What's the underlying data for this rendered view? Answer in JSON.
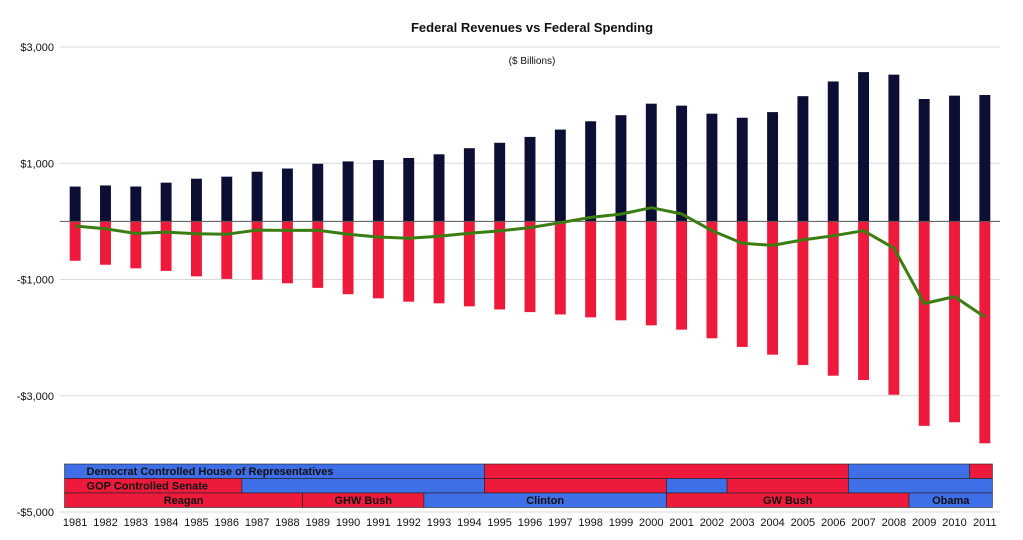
{
  "chart_data": {
    "type": "bar",
    "title": "Federal Revenues vs Federal Spending",
    "subtitle": "($ Billions)",
    "xlabel": "",
    "ylabel": "",
    "ylim": [
      -5000,
      3000
    ],
    "yticks": [
      {
        "value": 3000,
        "label": "$3,000"
      },
      {
        "value": 1000,
        "label": "$1,000"
      },
      {
        "value": -1000,
        "label": "-$1,000"
      },
      {
        "value": -3000,
        "label": "-$3,000"
      },
      {
        "value": -5000,
        "label": "-$5,000"
      }
    ],
    "grid": true,
    "legend": "none",
    "categories": [
      "1981",
      "1982",
      "1983",
      "1984",
      "1985",
      "1986",
      "1987",
      "1988",
      "1989",
      "1990",
      "1991",
      "1992",
      "1993",
      "1994",
      "1995",
      "1996",
      "1997",
      "1998",
      "1999",
      "2000",
      "2001",
      "2002",
      "2003",
      "2004",
      "2005",
      "2006",
      "2007",
      "2008",
      "2009",
      "2010",
      "2011"
    ],
    "series": [
      {
        "key": "revenues",
        "type": "bar",
        "color": "#0d0e33",
        "values": [
          599,
          618,
          600,
          666,
          734,
          769,
          854,
          909,
          991,
          1032,
          1055,
          1091,
          1154,
          1259,
          1352,
          1453,
          1579,
          1722,
          1827,
          2025,
          1991,
          1853,
          1783,
          1880,
          2154,
          2407,
          2568,
          2524,
          2105,
          2163,
          2174
        ]
      },
      {
        "key": "spending",
        "type": "bar",
        "color": "#ee1a3c",
        "values": [
          -678,
          -746,
          -808,
          -852,
          -946,
          -990,
          -1004,
          -1065,
          -1144,
          -1253,
          -1324,
          -1382,
          -1410,
          -1462,
          -1516,
          -1561,
          -1601,
          -1652,
          -1702,
          -1789,
          -1863,
          -2011,
          -2160,
          -2293,
          -2472,
          -2655,
          -2729,
          -2983,
          -3518,
          -3456,
          -3818
        ]
      },
      {
        "key": "deficit",
        "type": "line",
        "color": "#3a7d12",
        "values": [
          -79,
          -128,
          -208,
          -185,
          -212,
          -221,
          -150,
          -155,
          -153,
          -221,
          -269,
          -290,
          -255,
          -203,
          -164,
          -107,
          -22,
          69,
          126,
          236,
          128,
          -158,
          -377,
          -413,
          -318,
          -248,
          -161,
          -459,
          -1413,
          -1294,
          -1645
        ]
      }
    ],
    "bands": [
      {
        "key": "house",
        "segments": [
          {
            "from": "1981",
            "to": "1995",
            "color": "#3f6fe6",
            "label": "Democrat Controlled House of Representatives"
          },
          {
            "from": "1995",
            "to": "2007",
            "color": "#ee1a3c",
            "label": ""
          },
          {
            "from": "2007",
            "to": "2011",
            "color": "#3f6fe6",
            "label": ""
          },
          {
            "from": "2011",
            "to": "2011.75",
            "color": "#ee1a3c",
            "label": ""
          }
        ]
      },
      {
        "key": "senate",
        "segments": [
          {
            "from": "1981",
            "to": "1987",
            "color": "#ee1a3c",
            "label": "GOP Controlled Senate"
          },
          {
            "from": "1987",
            "to": "1995",
            "color": "#3f6fe6",
            "label": ""
          },
          {
            "from": "1995",
            "to": "2001",
            "color": "#ee1a3c",
            "label": ""
          },
          {
            "from": "2001",
            "to": "2003",
            "color": "#3f6fe6",
            "label": ""
          },
          {
            "from": "2003",
            "to": "2007",
            "color": "#ee1a3c",
            "label": ""
          },
          {
            "from": "2007",
            "to": "2011.75",
            "color": "#3f6fe6",
            "label": ""
          }
        ]
      },
      {
        "key": "president",
        "segments": [
          {
            "from": "1981",
            "to": "1989",
            "color": "#ee1a3c",
            "label": "Reagan"
          },
          {
            "from": "1989",
            "to": "1993",
            "color": "#ee1a3c",
            "label": "GHW Bush"
          },
          {
            "from": "1993",
            "to": "2001",
            "color": "#3f6fe6",
            "label": "Clinton"
          },
          {
            "from": "2001",
            "to": "2009",
            "color": "#ee1a3c",
            "label": "GW Bush"
          },
          {
            "from": "2009",
            "to": "2011.75",
            "color": "#3f6fe6",
            "label": "Obama"
          }
        ]
      }
    ]
  }
}
